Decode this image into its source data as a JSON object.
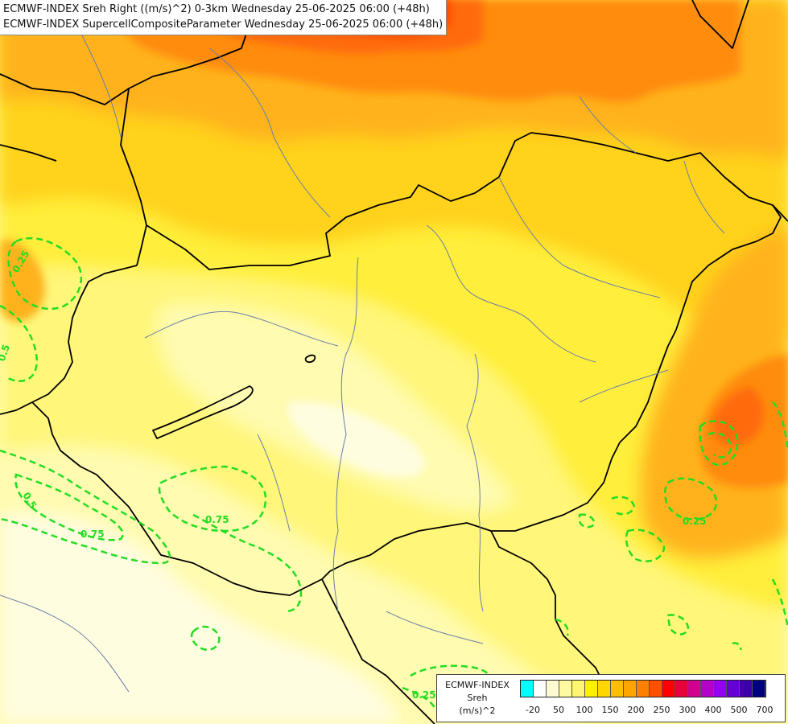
{
  "titles": {
    "line1": "ECMWF-INDEX Sreh Right ((m/s)^2) 0-3km Wednesday 25-06-2025 06:00 (+48h)",
    "line2": "ECMWF-INDEX SupercellCompositeParameter Wednesday 25-06-2025 06:00 (+48h)"
  },
  "legend": {
    "line1": "ECMWF-INDEX",
    "line2": "Sreh",
    "line3": "(m/s)^2",
    "colors": [
      "#00ffff",
      "#ffffff",
      "#fffbd0",
      "#fffaa0",
      "#fff570",
      "#fff000",
      "#ffd700",
      "#ffbe00",
      "#ffa500",
      "#ff8000",
      "#ff5000",
      "#ff0000",
      "#e8003c",
      "#d2008c",
      "#b400c8",
      "#9600f0",
      "#6400d2",
      "#3c00aa",
      "#000080"
    ],
    "ticks": [
      "-20",
      "50",
      "100",
      "150",
      "200",
      "250",
      "300",
      "400",
      "500",
      "700"
    ]
  },
  "contour_labels": {
    "a": "0.25",
    "b": "0.5",
    "c": "0.5",
    "d": "0.75",
    "e": "0.75",
    "f": "0.25",
    "g": "0.25"
  },
  "field_colors": {
    "lightest": "#fffde0",
    "pale": "#fffbb0",
    "light_yellow": "#fff67a",
    "yellow": "#ffee3a",
    "gold": "#ffd21c",
    "orange": "#ffb21a",
    "dark_orange": "#ff8c10",
    "red_orange": "#ff6a0a",
    "red": "#ff4a05",
    "contour": "#22dd22",
    "border": "#000000",
    "river": "#6a7fa8"
  }
}
